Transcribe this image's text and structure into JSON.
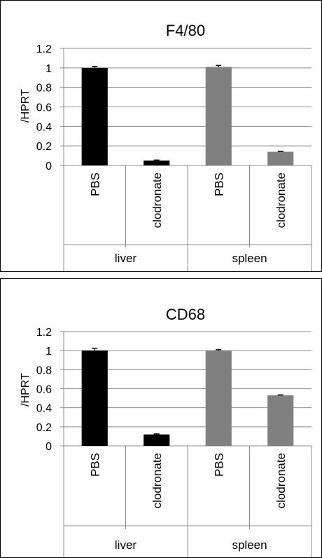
{
  "chart_data": [
    {
      "type": "bar",
      "title": "F4/80",
      "ylabel": "/HPRT",
      "ylim": [
        0,
        1.2
      ],
      "yticks": [
        "0",
        "0.2",
        "0.4",
        "0.6",
        "0.8",
        "1",
        "1.2"
      ],
      "categories": [
        "PBS",
        "clodronate",
        "PBS",
        "clodronate"
      ],
      "groups": [
        "liver",
        "spleen"
      ],
      "values": [
        1.0,
        0.05,
        1.01,
        0.14
      ],
      "errors": [
        0.015,
        0.005,
        0.015,
        0.005
      ],
      "bar_colors": [
        "#000000",
        "#000000",
        "#808080",
        "#808080"
      ],
      "grid": true
    },
    {
      "type": "bar",
      "title": "CD68",
      "ylabel": "/HPRT",
      "ylim": [
        0,
        1.2
      ],
      "yticks": [
        "0",
        "0.2",
        "0.4",
        "0.6",
        "0.8",
        "1",
        "1.2"
      ],
      "categories": [
        "PBS",
        "clodronate",
        "PBS",
        "clodronate"
      ],
      "groups": [
        "liver",
        "spleen"
      ],
      "values": [
        1.0,
        0.12,
        1.0,
        0.53
      ],
      "errors": [
        0.025,
        0.005,
        0.01,
        0.005
      ],
      "bar_colors": [
        "#000000",
        "#000000",
        "#808080",
        "#808080"
      ],
      "grid": true
    }
  ]
}
